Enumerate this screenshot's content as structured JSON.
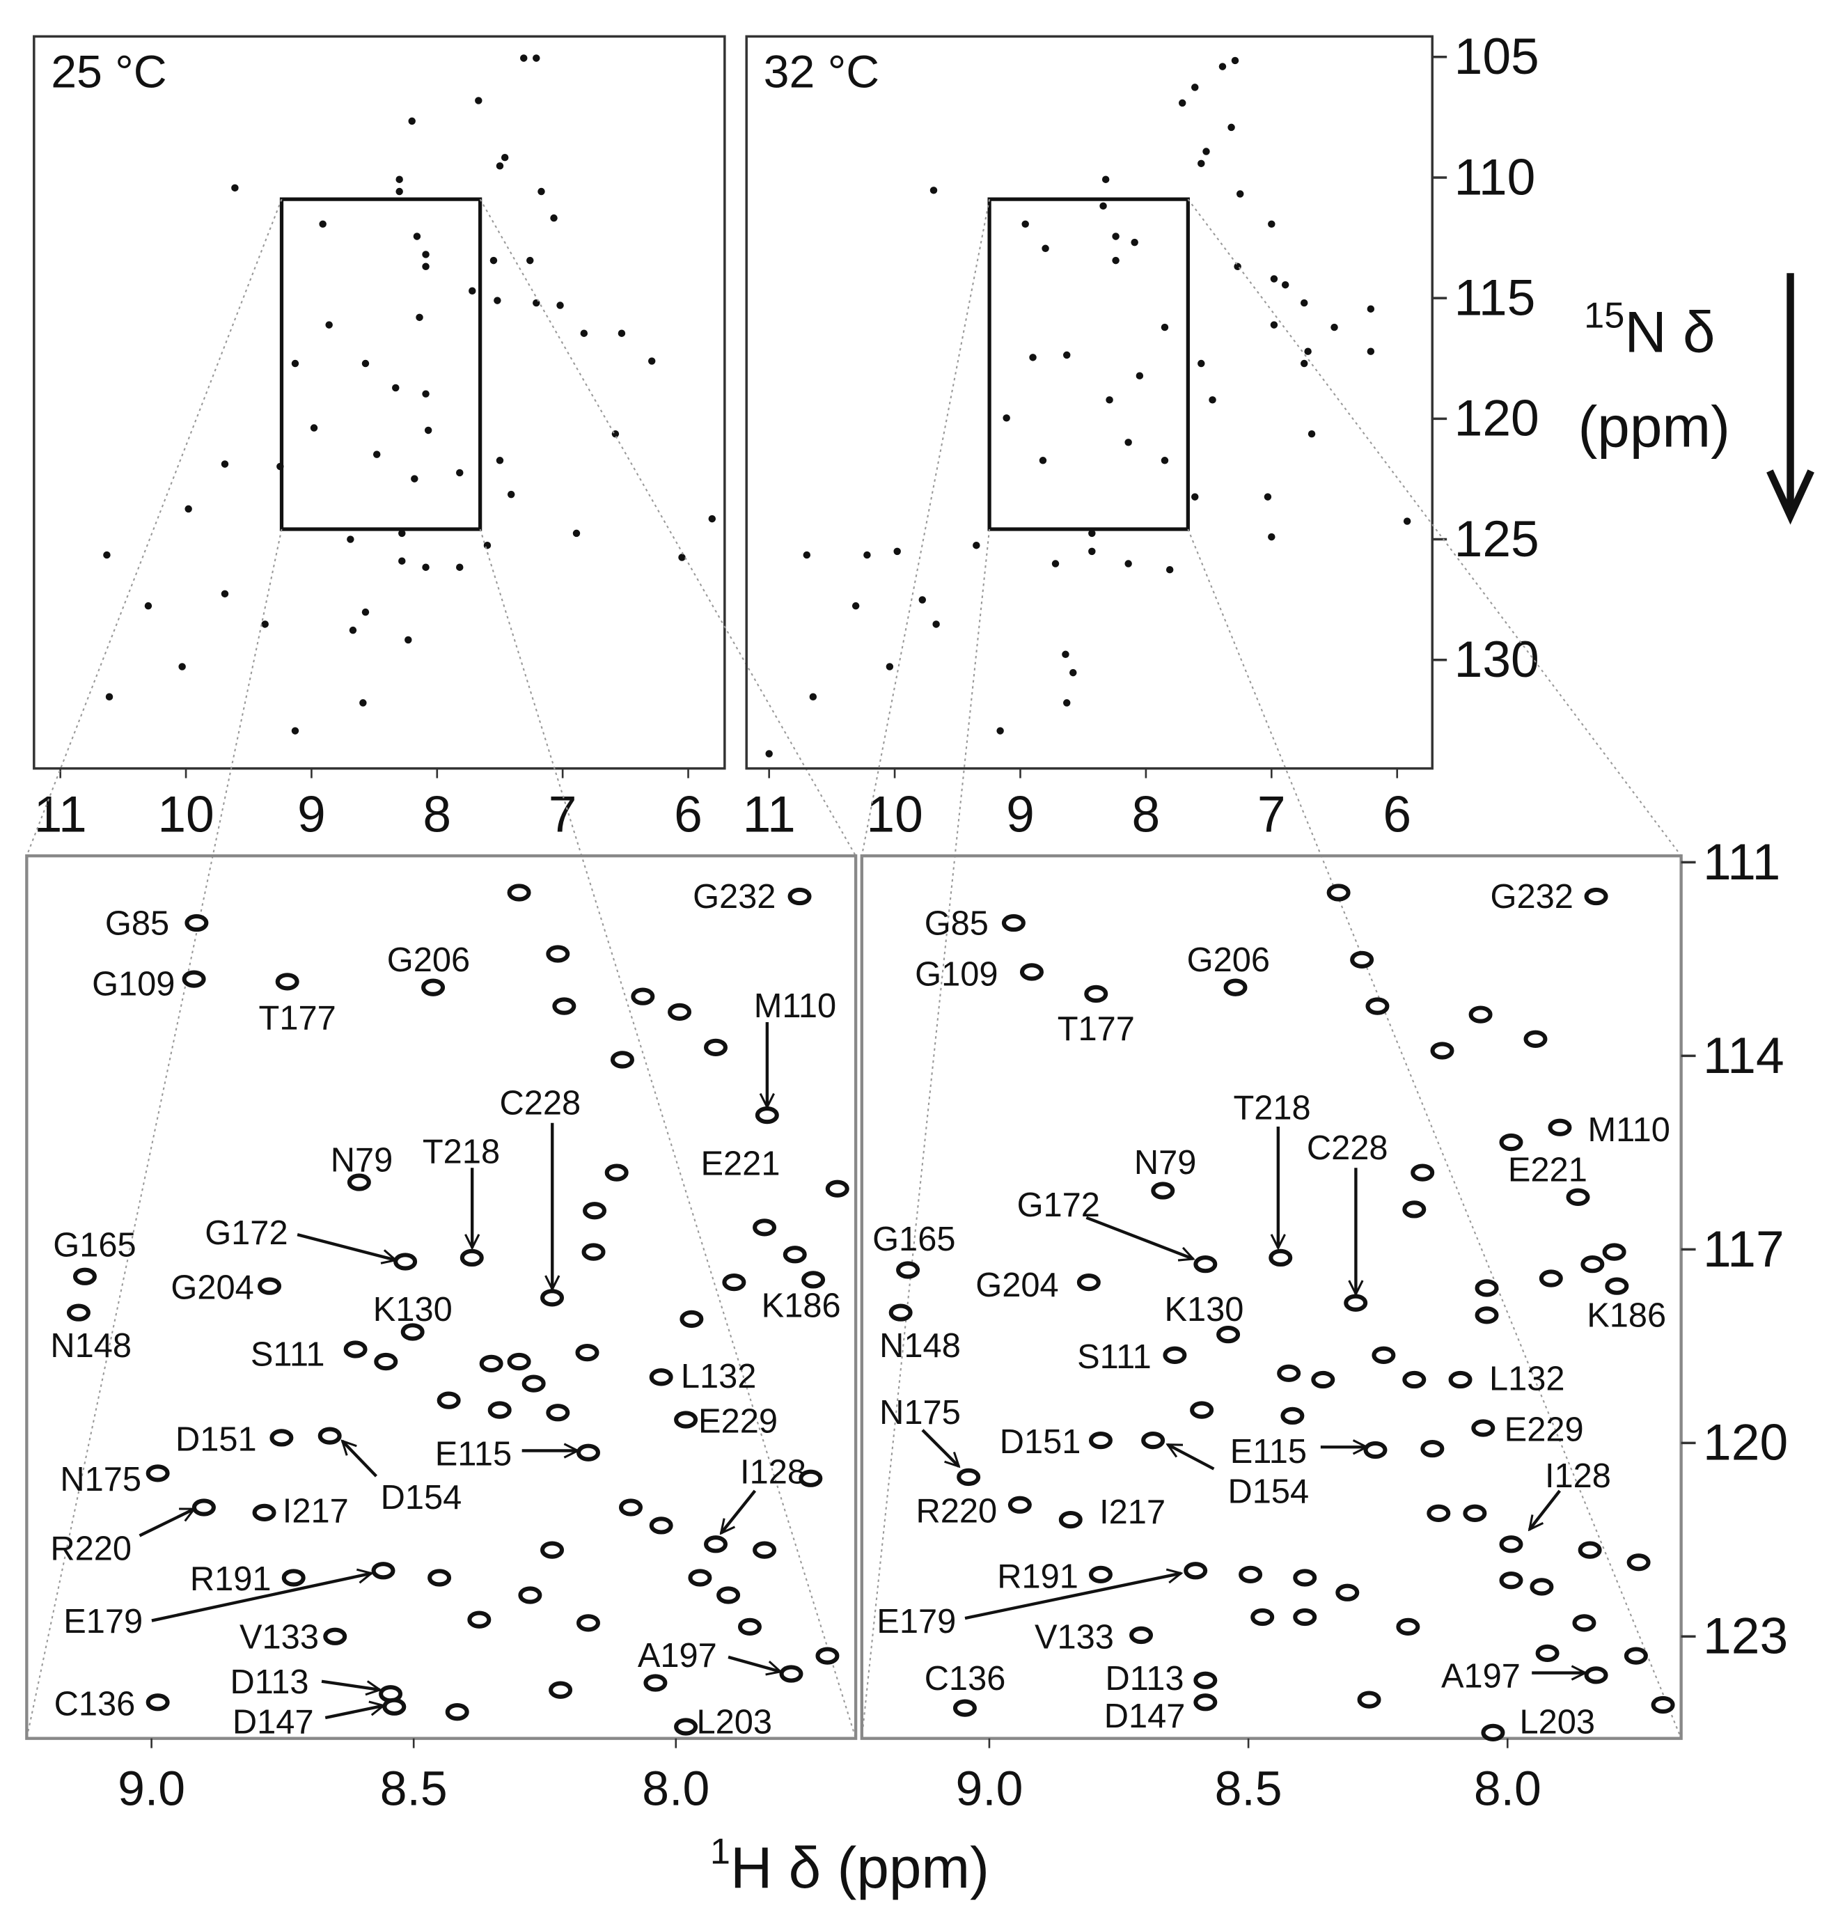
{
  "figure": {
    "ylabel": [
      "15",
      "N δ",
      "(ppm)"
    ],
    "xlabel": [
      "1",
      "H δ (ppm)"
    ]
  },
  "chart_data": [
    {
      "type": "scatter",
      "title": "25 °C",
      "xlim": [
        11.21,
        5.71
      ],
      "ylim": [
        104.15,
        134.5
      ],
      "xticks": [
        11,
        10,
        9,
        8,
        7,
        6
      ],
      "series": [
        {
          "color": "#111111",
          "x": [
            7.31,
            7.21,
            7.67,
            8.2,
            7.46,
            7.5,
            8.3,
            8.3,
            7.17,
            9.61,
            7.07,
            8.91,
            8.16,
            8.09,
            8.09,
            7.55,
            7.26,
            7.72,
            8.14,
            7.52,
            7.21,
            7.02,
            6.83,
            6.53,
            6.29,
            8.86,
            9.13,
            8.57,
            8.33,
            8.09,
            8.07,
            7.82,
            7.5,
            6.58,
            8.98,
            9.25,
            8.48,
            8.18,
            9.69,
            9.98,
            7.41,
            8.28,
            8.28,
            8.09,
            7.82,
            7.6,
            8.69,
            9.69,
            10.3,
            9.37,
            8.57,
            10.03,
            10.61,
            9.13,
            8.59,
            8.23,
            6.05,
            5.81,
            6.89,
            10.63,
            8.67
          ],
          "y": [
            105.05,
            105.05,
            106.81,
            107.66,
            109.17,
            109.52,
            110.08,
            110.58,
            110.58,
            110.43,
            111.68,
            111.93,
            112.44,
            113.19,
            113.69,
            113.44,
            113.44,
            114.7,
            115.8,
            115.1,
            115.2,
            115.3,
            116.46,
            116.46,
            117.61,
            116.11,
            117.71,
            117.71,
            118.72,
            118.97,
            120.48,
            122.24,
            121.73,
            120.63,
            120.38,
            121.98,
            121.48,
            122.49,
            121.88,
            123.74,
            123.14,
            124.75,
            125.9,
            126.16,
            126.16,
            125.25,
            125.0,
            127.26,
            127.76,
            128.52,
            128.02,
            130.28,
            131.53,
            132.94,
            131.78,
            129.17,
            125.75,
            124.15,
            124.75,
            125.65,
            128.77
          ]
        }
      ]
    },
    {
      "type": "scatter",
      "title": "32 °C",
      "xlim": [
        11.18,
        5.72
      ],
      "ylim": [
        104.15,
        134.5
      ],
      "xticks": [
        11,
        10,
        9,
        8,
        7,
        6
      ],
      "yticks": [
        105,
        110,
        115,
        120,
        125,
        130
      ],
      "series": [
        {
          "color": "#111111",
          "x": [
            7.29,
            7.39,
            7.61,
            7.71,
            7.32,
            7.52,
            7.56,
            8.32,
            8.34,
            7.25,
            9.69,
            7.0,
            8.96,
            8.8,
            8.24,
            8.09,
            8.24,
            7.27,
            6.98,
            6.89,
            6.74,
            6.98,
            6.5,
            6.21,
            6.71,
            6.21,
            8.9,
            8.63,
            7.85,
            7.56,
            6.74,
            8.05,
            8.29,
            9.11,
            8.14,
            7.85,
            8.82,
            6.68,
            5.92,
            7.61,
            7.0,
            8.43,
            8.43,
            8.14,
            7.81,
            8.72,
            9.35,
            9.98,
            10.7,
            10.22,
            9.78,
            10.31,
            9.67,
            8.64,
            8.58,
            8.63,
            10.04,
            10.65,
            9.16,
            11.0,
            7.47,
            7.03
          ],
          "y": [
            105.15,
            105.4,
            106.26,
            106.91,
            107.92,
            108.92,
            109.42,
            110.08,
            111.18,
            110.68,
            110.53,
            111.93,
            111.93,
            112.94,
            112.44,
            112.69,
            113.44,
            113.69,
            114.2,
            114.45,
            115.2,
            116.11,
            116.21,
            115.45,
            117.21,
            117.21,
            117.46,
            117.36,
            116.21,
            117.71,
            117.71,
            118.22,
            119.22,
            119.97,
            120.98,
            121.73,
            121.73,
            120.63,
            124.25,
            123.24,
            124.9,
            124.75,
            125.5,
            126.01,
            126.26,
            126.01,
            125.25,
            125.5,
            125.65,
            125.65,
            127.51,
            127.76,
            128.52,
            129.77,
            130.53,
            131.78,
            130.28,
            131.53,
            132.94,
            133.89,
            119.22,
            123.24
          ]
        }
      ]
    },
    {
      "type": "scatter",
      "xlim": [
        9.238,
        7.657
      ],
      "ylim": [
        110.9,
        124.58
      ],
      "xticks": [
        {
          "value": 9,
          "label": "9.0"
        },
        8.5,
        {
          "value": 8,
          "label": "8.0"
        }
      ],
      "series": [
        {
          "color": "#111111",
          "labels": [
            "G85",
            "G109",
            "T177",
            "G206",
            "G232",
            "M110",
            "E221",
            "C228",
            "T218",
            "N79",
            "G172",
            "G204",
            "G165",
            "N148",
            "K130",
            "K186",
            "S111",
            "L132",
            "E229",
            "D151",
            "D154",
            "E115",
            "N175",
            "I128",
            "R220",
            "I217",
            "R191",
            "E179",
            "V133",
            "A197",
            "C136",
            "D113",
            "D147",
            "L203",
            null,
            null,
            null,
            null,
            null,
            null,
            null,
            null,
            null,
            null,
            null,
            null,
            null,
            null,
            null,
            null,
            null,
            null,
            null,
            null,
            null,
            null,
            null,
            null,
            null,
            null,
            null,
            null,
            null,
            null,
            null,
            null,
            null,
            null,
            null,
            null,
            null,
            null
          ],
          "x": [
            8.914,
            8.919,
            8.741,
            8.463,
            7.764,
            7.826,
            7.924,
            8.236,
            8.389,
            8.604,
            8.516,
            8.775,
            9.127,
            9.139,
            8.502,
            7.738,
            8.611,
            8.028,
            7.981,
            8.752,
            8.66,
            8.167,
            8.988,
            7.924,
            8.9,
            8.785,
            8.729,
            8.558,
            8.65,
            7.78,
            8.988,
            8.544,
            8.537,
            7.981,
            8.299,
            8.225,
            8.213,
            8.063,
            7.993,
            8.102,
            8.113,
            8.155,
            8.157,
            7.831,
            7.692,
            7.773,
            7.889,
            7.97,
            8.553,
            8.352,
            8.299,
            8.271,
            8.169,
            8.433,
            8.336,
            8.225,
            8.086,
            8.028,
            7.831,
            7.743,
            8.236,
            8.451,
            8.278,
            7.954,
            7.9,
            8.375,
            8.167,
            7.859,
            7.711,
            8.039,
            8.22,
            8.417
          ],
          "y": [
            111.94,
            112.81,
            112.85,
            112.94,
            111.53,
            114.92,
            113.87,
            117.75,
            117.13,
            115.96,
            117.19,
            117.57,
            117.42,
            117.98,
            118.28,
            117.47,
            118.55,
            118.98,
            119.64,
            119.92,
            119.89,
            120.15,
            120.47,
            121.57,
            121.0,
            121.08,
            122.09,
            121.98,
            123.0,
            123.58,
            124.02,
            123.89,
            124.09,
            124.4,
            111.47,
            112.42,
            113.23,
            113.08,
            113.32,
            114.06,
            115.81,
            116.4,
            117.04,
            116.66,
            116.06,
            117.08,
            117.51,
            118.08,
            118.74,
            118.77,
            118.74,
            119.08,
            118.6,
            119.34,
            119.49,
            119.53,
            121.0,
            121.28,
            121.66,
            120.55,
            121.66,
            122.09,
            122.36,
            122.09,
            122.36,
            122.74,
            122.79,
            122.85,
            123.3,
            123.72,
            123.83,
            124.17
          ]
        }
      ]
    },
    {
      "type": "scatter",
      "xlim": [
        9.246,
        7.665
      ],
      "ylim": [
        110.9,
        124.58
      ],
      "xticks": [
        {
          "value": 9,
          "label": "9.0"
        },
        8.5,
        {
          "value": 8,
          "label": "8.0"
        }
      ],
      "yticks": [
        111,
        114,
        117,
        120,
        123
      ],
      "series": [
        {
          "color": "#111111",
          "labels": [
            "G85",
            "G109",
            "T177",
            "G206",
            "G232",
            "M110",
            "E221",
            "C228",
            "T218",
            "N79",
            "G172",
            "G204",
            "G165",
            "N148",
            "K130",
            "K186",
            "S111",
            "L132",
            "E229",
            "D151",
            "D154",
            "E115",
            "N175",
            "I128",
            "R220",
            "I217",
            "R191",
            "E179",
            "V133",
            "A197",
            "C136",
            "D113",
            "D147",
            "L203",
            null,
            null,
            null,
            null,
            null,
            null,
            null,
            null,
            null,
            null,
            null,
            null,
            null,
            null,
            null,
            null,
            null,
            null,
            null,
            null,
            null,
            null,
            null,
            null,
            null,
            null,
            null,
            null,
            null,
            null,
            null,
            null,
            null,
            null,
            null,
            null,
            null,
            null
          ],
          "x": [
            8.953,
            8.918,
            8.794,
            8.525,
            7.829,
            7.899,
            7.993,
            8.293,
            8.438,
            8.665,
            8.583,
            8.808,
            9.157,
            9.171,
            8.539,
            7.789,
            8.642,
            8.091,
            8.047,
            8.785,
            8.684,
            8.255,
            9.04,
            7.993,
            8.941,
            8.843,
            8.785,
            8.602,
            8.707,
            7.829,
            9.047,
            8.583,
            8.583,
            8.028,
            8.326,
            8.281,
            8.251,
            8.126,
            8.052,
            7.946,
            8.164,
            8.18,
            7.864,
            7.794,
            7.836,
            7.916,
            8.04,
            8.04,
            8.239,
            8.18,
            8.422,
            8.356,
            8.59,
            8.415,
            8.145,
            8.133,
            8.063,
            7.841,
            7.747,
            8.496,
            8.391,
            8.309,
            7.993,
            7.934,
            8.473,
            8.391,
            8.192,
            7.852,
            7.923,
            7.752,
            8.267,
            7.7
          ],
          "y": [
            111.94,
            112.7,
            113.04,
            112.94,
            111.53,
            115.11,
            115.34,
            117.83,
            117.13,
            116.09,
            117.23,
            117.51,
            117.32,
            117.98,
            118.32,
            117.57,
            118.64,
            119.02,
            119.77,
            119.96,
            119.96,
            120.11,
            120.53,
            121.57,
            120.96,
            121.19,
            122.04,
            121.98,
            122.98,
            123.6,
            124.11,
            123.68,
            124.02,
            124.49,
            111.47,
            112.51,
            113.23,
            113.92,
            113.36,
            113.74,
            115.81,
            116.38,
            116.19,
            117.04,
            117.23,
            117.45,
            117.6,
            118.02,
            118.64,
            119.02,
            118.92,
            119.02,
            119.49,
            119.58,
            120.09,
            121.09,
            121.09,
            121.66,
            121.85,
            122.04,
            122.09,
            122.32,
            122.13,
            122.23,
            122.7,
            122.7,
            122.85,
            122.79,
            123.26,
            123.3,
            123.98,
            124.06
          ]
        }
      ]
    }
  ]
}
